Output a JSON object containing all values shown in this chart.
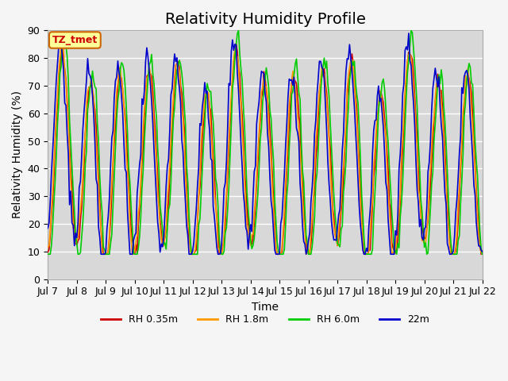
{
  "title": "Relativity Humidity Profile",
  "xlabel": "Time",
  "ylabel": "Relativity Humidity (%)",
  "ylim": [
    0,
    90
  ],
  "xlim": [
    0,
    360
  ],
  "yticks": [
    0,
    10,
    20,
    30,
    40,
    50,
    60,
    70,
    80,
    90
  ],
  "xtick_labels": [
    "Jul 7",
    "Jul 8",
    "Jul 9",
    "Jul 10",
    "Jul 11",
    "Jul 12",
    "Jul 13",
    "Jul 14",
    "Jul 15",
    "Jul 16",
    "Jul 17",
    "Jul 18",
    "Jul 19",
    "Jul 20",
    "Jul 21",
    "Jul 22"
  ],
  "xtick_positions": [
    0,
    24,
    48,
    72,
    96,
    120,
    144,
    168,
    192,
    216,
    240,
    264,
    288,
    312,
    336,
    360
  ],
  "colors": {
    "RH 0.35m": "#cc0000",
    "RH 1.8m": "#ff9900",
    "RH 6.0m": "#00cc00",
    "22m": "#0000cc"
  },
  "legend_labels": [
    "RH 0.35m",
    "RH 1.8m",
    "RH 6.0m",
    "22m"
  ],
  "annotation_text": "TZ_tmet",
  "annotation_color": "#cc0000",
  "annotation_box_color": "#ffff99",
  "annotation_box_edge": "#cc6600",
  "background_color": "#e0e0e0",
  "plot_bg_color": "#d8d8d8",
  "grid_color": "#ffffff",
  "title_fontsize": 14,
  "label_fontsize": 10,
  "tick_fontsize": 9
}
